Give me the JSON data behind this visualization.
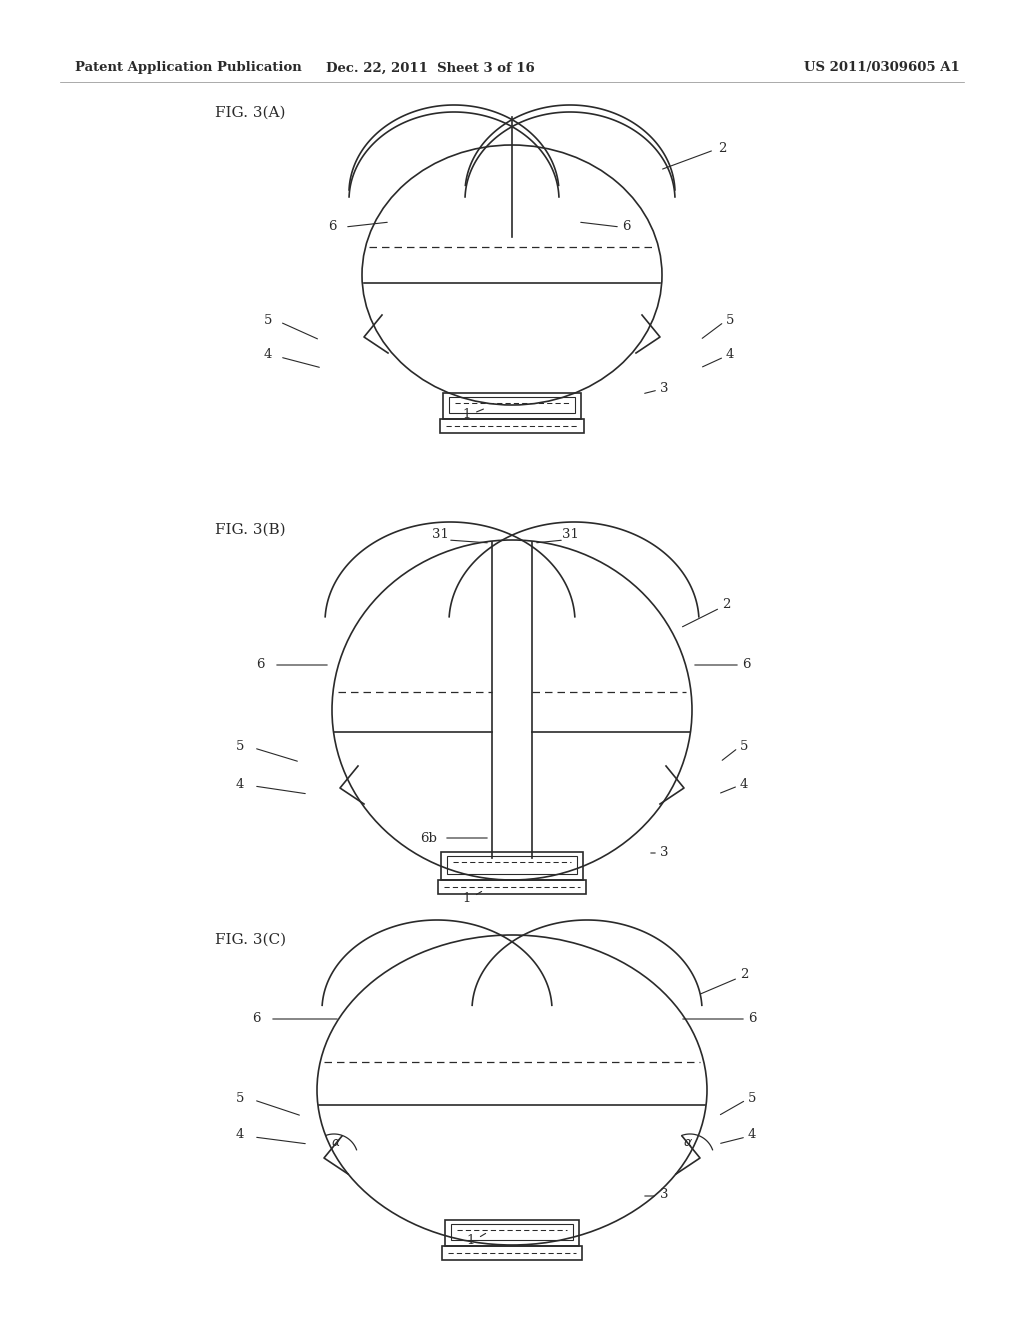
{
  "bg_color": "#ffffff",
  "line_color": "#2a2a2a",
  "header_left": "Patent Application Publication",
  "header_mid": "Dec. 22, 2011  Sheet 3 of 16",
  "header_right": "US 2011/0309605 A1",
  "lw": 1.2,
  "dlw": 0.9
}
